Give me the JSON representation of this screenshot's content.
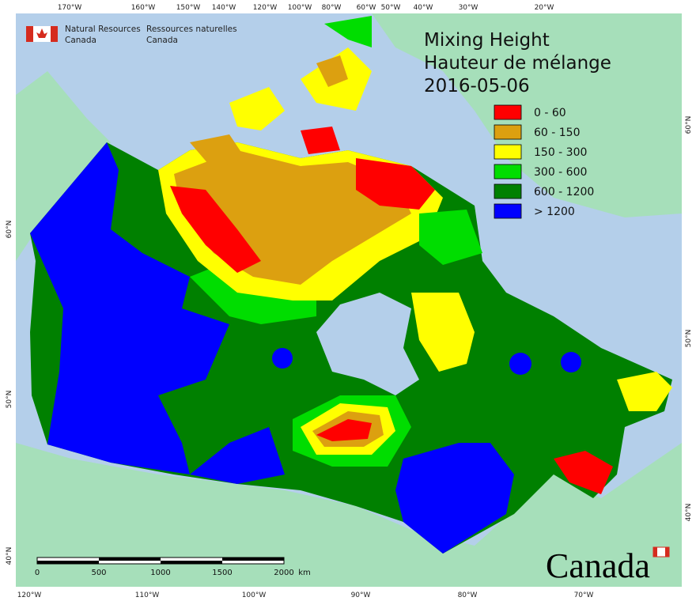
{
  "header": {
    "title_lines": [
      "Mixing Height",
      "Hauteur de mélange",
      "2016-05-06"
    ],
    "agency_en": [
      "Natural Resources",
      "Canada"
    ],
    "agency_fr": [
      "Ressources naturelles",
      "Canada"
    ],
    "wordmark": "Canada"
  },
  "legend": [
    {
      "label": "0 - 60",
      "color": "#ff0000"
    },
    {
      "label": "60 - 150",
      "color": "#dca010"
    },
    {
      "label": "150 - 300",
      "color": "#ffff00"
    },
    {
      "label": "300 - 600",
      "color": "#00dd00"
    },
    {
      "label": "600 - 1200",
      "color": "#008000"
    },
    {
      "label": "> 1200",
      "color": "#0000ff"
    }
  ],
  "graticule": {
    "top": [
      "170°W",
      "160°W",
      "150°W",
      "140°W",
      "120°W",
      "100°W",
      "80°W",
      "60°W",
      "50°W",
      "40°W",
      "30°W",
      "20°W"
    ],
    "bottom": [
      "120°W",
      "110°W",
      "100°W",
      "90°W",
      "80°W",
      "70°W"
    ],
    "left": [
      "60°N",
      "50°N",
      "40°N"
    ],
    "right": [
      "60°N",
      "50°N",
      "40°N"
    ]
  },
  "scale_bar": [
    "0",
    "500",
    "1000",
    "1500",
    "2000",
    "km"
  ]
}
